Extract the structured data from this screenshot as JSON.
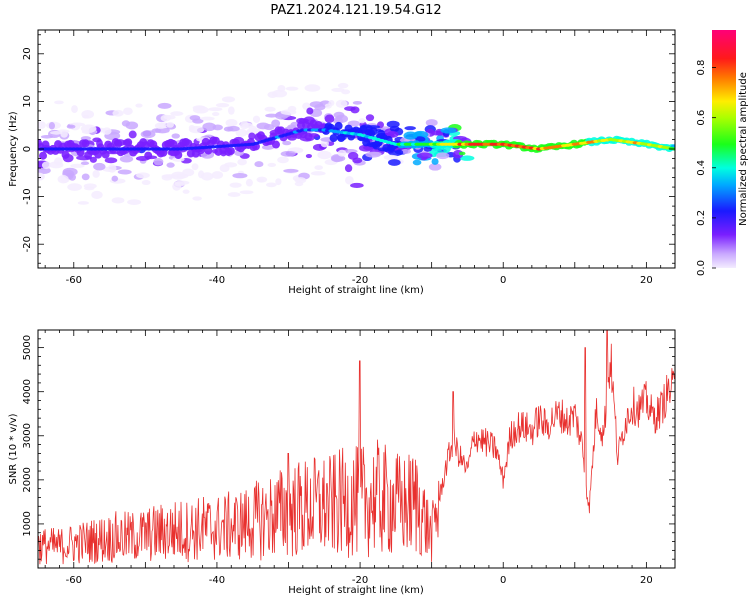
{
  "figure": {
    "title": "PAZ1.2024.121.19.54.G12"
  },
  "chart_data": [
    {
      "type": "heatmap",
      "xlabel": "Height of straight line (km)",
      "ylabel": "Frequency (Hz)",
      "xlim": [
        -65,
        24
      ],
      "ylim": [
        -25,
        25
      ],
      "xticks": [
        -60,
        -40,
        -20,
        0,
        20
      ],
      "yticks": [
        20,
        10,
        0,
        -10,
        -20
      ],
      "colorbar": {
        "label": "Normalized spectral amplitude",
        "range": [
          0,
          0.95
        ],
        "ticks": [
          0.0,
          0.2,
          0.4,
          0.6,
          0.8
        ],
        "colormap": "white-violet-blue-cyan-green-yellow-red-magenta"
      },
      "ridge": {
        "x": [
          -64,
          -55,
          -45,
          -35,
          -28,
          -25,
          -20,
          -15,
          -10,
          -5,
          0,
          5,
          10,
          15,
          20,
          24
        ],
        "f_center": [
          0,
          0,
          0,
          1,
          4,
          4,
          3,
          1,
          1,
          1,
          1,
          0,
          1,
          2,
          1,
          0
        ],
        "amplitude": [
          0.25,
          0.3,
          0.3,
          0.3,
          0.35,
          0.35,
          0.45,
          0.5,
          0.6,
          0.85,
          0.9,
          0.85,
          0.8,
          0.7,
          0.75,
          0.6
        ]
      }
    },
    {
      "type": "line",
      "xlabel": "Height of straight line (km)",
      "ylabel": "SNR (10 * v/v)",
      "xlim": [
        -65,
        24
      ],
      "ylim": [
        0,
        5400
      ],
      "xticks": [
        -60,
        -40,
        -20,
        0,
        20
      ],
      "yticks": [
        1000,
        2000,
        3000,
        4000,
        5000
      ],
      "line_color": "#e8302e",
      "series": [
        {
          "x": [
            -65,
            -62,
            -60,
            -58,
            -56,
            -54,
            -52,
            -50,
            -48,
            -46,
            -44,
            -42,
            -40,
            -38,
            -36,
            -34,
            -32,
            -30,
            -28,
            -26,
            -24,
            -22,
            -20,
            -18,
            -16,
            -14,
            -12,
            -10,
            -9,
            -8,
            -7,
            -6,
            -5,
            -4,
            -3,
            -2,
            -1,
            0,
            1,
            2,
            3,
            4,
            5,
            6,
            7,
            8,
            9,
            10,
            11,
            12,
            13,
            14,
            15,
            16,
            17,
            18,
            19,
            20,
            21,
            22,
            23,
            24
          ],
          "y": [
            500,
            500,
            550,
            600,
            650,
            700,
            700,
            750,
            800,
            850,
            850,
            900,
            900,
            950,
            1000,
            1100,
            1200,
            1300,
            1350,
            1400,
            1400,
            1500,
            1500,
            1600,
            1500,
            1400,
            1500,
            700,
            1500,
            2300,
            2900,
            2500,
            2200,
            3000,
            2900,
            2800,
            2700,
            2000,
            3000,
            3200,
            3200,
            3100,
            3400,
            3200,
            3400,
            3500,
            3300,
            3500,
            2800,
            1300,
            3600,
            3000,
            4800,
            2500,
            3300,
            3700,
            3600,
            3800,
            3400,
            3600,
            4000,
            4100
          ]
        }
      ],
      "spikes": [
        {
          "x": -20,
          "y": 4700
        },
        {
          "x": -30,
          "y": 2600
        },
        {
          "x": -7,
          "y": 4000
        },
        {
          "x": 11.5,
          "y": 5000
        },
        {
          "x": 14.5,
          "y": 5400
        }
      ]
    }
  ]
}
